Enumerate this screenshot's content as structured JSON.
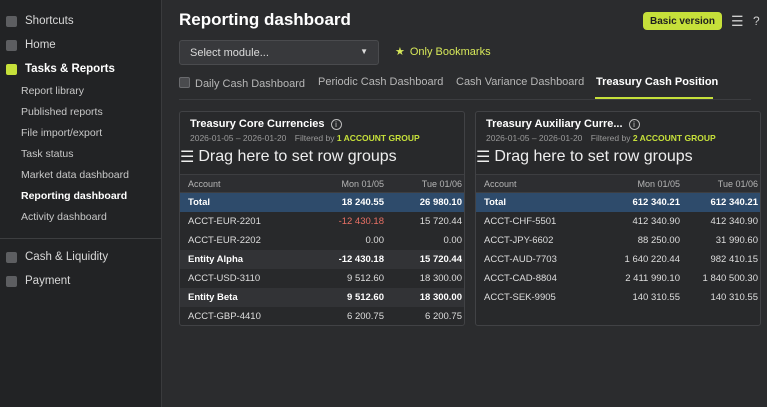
{
  "sidebar": {
    "top_items": [
      {
        "label": "Shortcuts"
      },
      {
        "label": "Home"
      },
      {
        "label": "Tasks & Reports"
      }
    ],
    "sub_items": [
      {
        "label": "Report library"
      },
      {
        "label": "Published reports"
      },
      {
        "label": "File import/export"
      },
      {
        "label": "Task status"
      },
      {
        "label": "Market data dashboard"
      },
      {
        "label": "Reporting dashboard"
      },
      {
        "label": "Activity dashboard"
      }
    ],
    "bottom_items": [
      {
        "label": "Cash & Liquidity"
      },
      {
        "label": "Payment"
      }
    ]
  },
  "header": {
    "title": "Reporting dashboard",
    "version_label": "Basic version",
    "menu_icon": "☰",
    "help_icon": "?"
  },
  "toolbar": {
    "module_placeholder": "Select module...",
    "module_arrow": "▼",
    "bookmarks_star": "★",
    "bookmarks_label": "Only Bookmarks"
  },
  "tabs": [
    {
      "label": "Daily Cash Dashboard"
    },
    {
      "label": "Periodic Cash Dashboard"
    },
    {
      "label": "Cash Variance Dashboard"
    },
    {
      "label": "Treasury Cash Position"
    }
  ],
  "cards": [
    {
      "title": "Treasury Core Currencies",
      "date_range": "2026-01-05 – 2026-01-20",
      "filter_prefix": "Filtered by",
      "filter_value": "1 ACCOUNT GROUP",
      "drag_label": "Drag here to set row groups",
      "columns": [
        "Account",
        "Mon 01/05",
        "Tue 01/06"
      ],
      "rows": [
        {
          "account": "Total",
          "mon": "18 240.55",
          "tue": "26 980.10"
        },
        {
          "account": "ACCT-EUR-2201",
          "mon": "-12 430.18",
          "tue": "15 720.44"
        },
        {
          "account": "ACCT-EUR-2202",
          "mon": "0.00",
          "tue": "0.00"
        },
        {
          "account": "Entity Alpha",
          "mon": "-12 430.18",
          "tue": "15 720.44"
        },
        {
          "account": "ACCT-USD-3110",
          "mon": "9 512.60",
          "tue": "18 300.00"
        },
        {
          "account": "Entity Beta",
          "mon": "9 512.60",
          "tue": "18 300.00"
        },
        {
          "account": "ACCT-GBP-4410",
          "mon": "6 200.75",
          "tue": "6 200.75"
        }
      ]
    },
    {
      "title": "Treasury Auxiliary Curre...",
      "date_range": "2026-01-05 – 2026-01-20",
      "filter_prefix": "Filtered by",
      "filter_value": "2 ACCOUNT GROUP",
      "drag_label": "Drag here to set row groups",
      "columns": [
        "Account",
        "Mon 01/05",
        "Tue 01/06"
      ],
      "rows": [
        {
          "account": "Total",
          "mon": "612 340.21",
          "tue": "612 340.21"
        },
        {
          "account": "ACCT-CHF-5501",
          "mon": "412 340.90",
          "tue": "412 340.90"
        },
        {
          "account": "ACCT-JPY-6602",
          "mon": "88 250.00",
          "tue": "31 990.60"
        },
        {
          "account": "ACCT-AUD-7703",
          "mon": "1 640 220.44",
          "tue": "982 410.15"
        },
        {
          "account": "ACCT-CAD-8804",
          "mon": "2 411 990.10",
          "tue": "1 840 500.30"
        },
        {
          "account": "ACCT-SEK-9905",
          "mon": "140 310.55",
          "tue": "140 310.55"
        }
      ]
    }
  ],
  "colors": {
    "accent": "#c6e03a",
    "total_row": "#2e4b6b",
    "negative": "#e87065"
  }
}
